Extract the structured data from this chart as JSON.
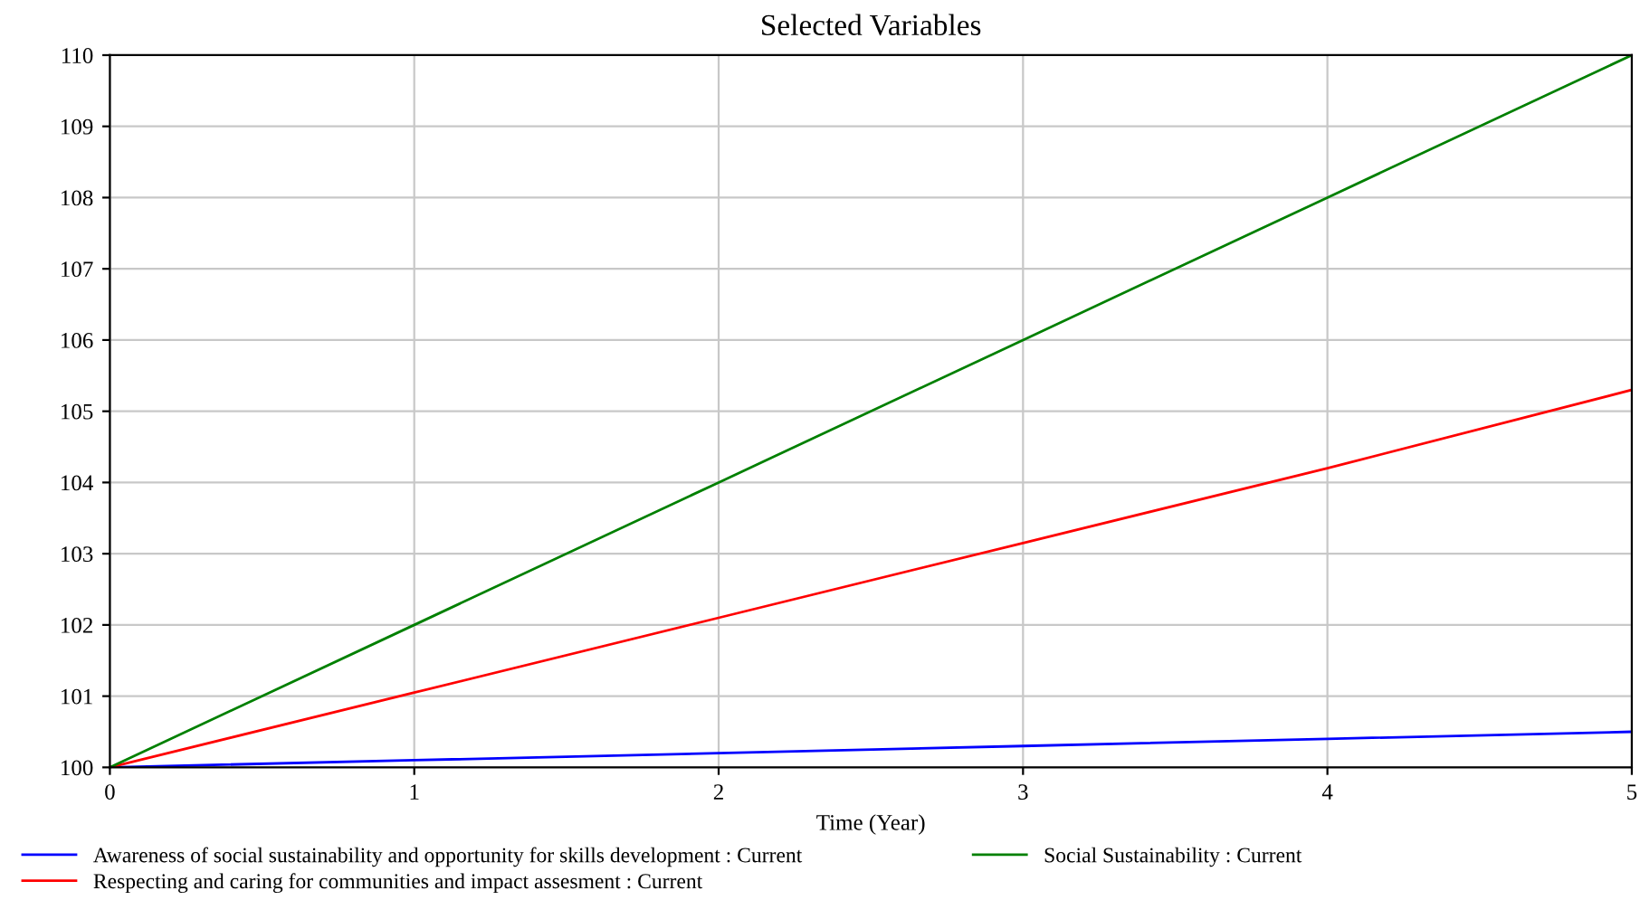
{
  "chart_data": {
    "type": "line",
    "title": "Selected Variables",
    "xlabel": "Time (Year)",
    "x": [
      0,
      1,
      2,
      3,
      4,
      5
    ],
    "series": [
      {
        "name": "Awareness of social sustainability and opportunity for skills development : Current",
        "color": "#0000ff",
        "values": [
          100,
          100.1,
          100.2,
          100.3,
          100.4,
          100.5
        ]
      },
      {
        "name": "Respecting and caring for communities and impact assesment : Current",
        "color": "#ff0000",
        "values": [
          100,
          101.05,
          102.1,
          103.15,
          104.2,
          105.3
        ]
      },
      {
        "name": "Social Sustainability : Current",
        "color": "#008000",
        "values": [
          100,
          102,
          104,
          106,
          108,
          110
        ]
      }
    ],
    "xlim": [
      0,
      5
    ],
    "xticks": [
      0,
      1,
      2,
      3,
      4,
      5
    ],
    "ylim": [
      100,
      110
    ],
    "yticks": [
      100,
      101,
      102,
      103,
      104,
      105,
      106,
      107,
      108,
      109,
      110
    ],
    "grid": true,
    "legend": "bottom",
    "marker": "none",
    "line_style": "solid"
  }
}
